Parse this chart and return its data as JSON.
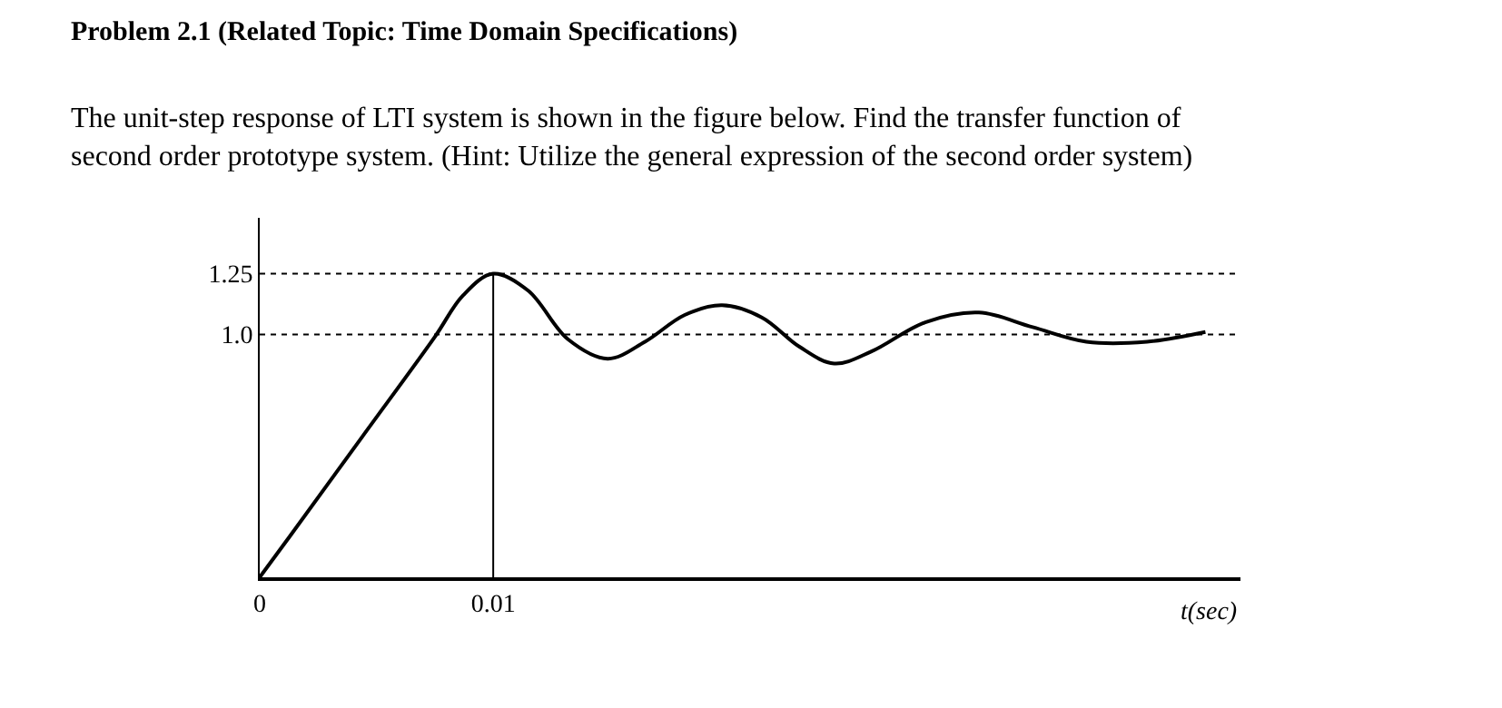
{
  "chart_data": {
    "type": "line",
    "title": "Problem 2.1 (Related Topic: Time Domain Specifications)",
    "subtitle": "The unit-step response of LTI system is shown in the figure below. Find the transfer function of\nsecond order prototype system. (Hint: Utilize the general expression of the second order system)",
    "xlabel": "t(sec)",
    "x": [
      0,
      0.0013,
      0.0044,
      0.0075,
      0.0087,
      0.01,
      0.0115,
      0.0132,
      0.0149,
      0.0165,
      0.0182,
      0.0198,
      0.0215,
      0.0231,
      0.0246,
      0.0262,
      0.0285,
      0.0308,
      0.0331,
      0.0354,
      0.038,
      0.0405
    ],
    "series": [
      {
        "color": "#000000",
        "values": [
          0,
          0.17,
          0.58,
          0.99,
          1.16,
          1.25,
          1.18,
          0.98,
          0.9,
          0.97,
          1.08,
          1.12,
          1.07,
          0.95,
          0.88,
          0.93,
          1.05,
          1.09,
          1.03,
          0.97,
          0.97,
          1.01
        ]
      }
    ],
    "xlim": [
      0,
      0.042
    ],
    "ylim": [
      0,
      1.48
    ],
    "xticks": [
      0,
      0.01
    ],
    "yticks": [
      {
        "value": 1,
        "label": "1.0"
      },
      1.25
    ],
    "ref_lines": [
      {
        "axis": "y",
        "value": 1,
        "line_style": "dotted",
        "color": "#000000"
      },
      {
        "axis": "y",
        "value": 1.25,
        "line_style": "dotted",
        "color": "#000000"
      },
      {
        "axis": "x",
        "value": 0.01,
        "line_style": "solid",
        "color": "#000000"
      }
    ],
    "marker": "none",
    "line_style": "solid"
  }
}
